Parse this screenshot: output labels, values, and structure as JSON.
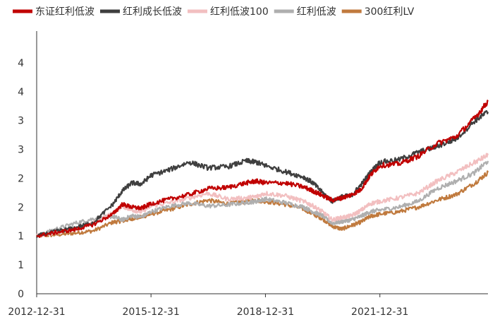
{
  "chart_data": {
    "type": "line",
    "title": "",
    "xlabel": "",
    "ylabel": "",
    "x_ticks": [
      "2012-12-31",
      "2015-12-31",
      "2018-12-31",
      "2021-12-31"
    ],
    "x_range": [
      "2012-12-31",
      "2024-10-31"
    ],
    "y_ticks": [
      "0",
      "1",
      "1",
      "2",
      "2",
      "3",
      "3",
      "4",
      "4"
    ],
    "ylim": [
      0,
      4.5
    ],
    "grid": false,
    "legend_position": "top",
    "series": [
      {
        "name": "东证红利低波",
        "color": "#C00000",
        "points": [
          [
            "2012-12-31",
            1.0
          ],
          [
            "2013-06-30",
            1.06
          ],
          [
            "2013-12-31",
            1.11
          ],
          [
            "2014-06-30",
            1.2
          ],
          [
            "2014-12-31",
            1.38
          ],
          [
            "2015-03-31",
            1.55
          ],
          [
            "2015-06-30",
            1.5
          ],
          [
            "2015-09-30",
            1.48
          ],
          [
            "2015-12-31",
            1.56
          ],
          [
            "2016-06-30",
            1.64
          ],
          [
            "2016-12-31",
            1.72
          ],
          [
            "2017-06-30",
            1.82
          ],
          [
            "2017-12-31",
            1.84
          ],
          [
            "2018-06-30",
            1.92
          ],
          [
            "2018-09-30",
            1.95
          ],
          [
            "2018-12-31",
            1.92
          ],
          [
            "2019-06-30",
            1.92
          ],
          [
            "2019-12-31",
            1.85
          ],
          [
            "2020-03-31",
            1.78
          ],
          [
            "2020-06-30",
            1.7
          ],
          [
            "2020-09-30",
            1.62
          ],
          [
            "2020-12-31",
            1.66
          ],
          [
            "2021-03-31",
            1.71
          ],
          [
            "2021-06-30",
            1.8
          ],
          [
            "2021-09-30",
            2.05
          ],
          [
            "2021-12-31",
            2.22
          ],
          [
            "2022-06-30",
            2.25
          ],
          [
            "2022-12-31",
            2.38
          ],
          [
            "2023-06-30",
            2.6
          ],
          [
            "2023-12-31",
            2.72
          ],
          [
            "2024-06-30",
            3.05
          ],
          [
            "2024-10-31",
            3.33
          ]
        ]
      },
      {
        "name": "红利成长低波",
        "color": "#3F3F3F",
        "points": [
          [
            "2012-12-31",
            1.0
          ],
          [
            "2013-06-30",
            1.08
          ],
          [
            "2013-12-31",
            1.14
          ],
          [
            "2014-06-30",
            1.24
          ],
          [
            "2014-12-31",
            1.55
          ],
          [
            "2015-03-31",
            1.78
          ],
          [
            "2015-06-30",
            1.92
          ],
          [
            "2015-09-30",
            1.9
          ],
          [
            "2015-12-31",
            2.05
          ],
          [
            "2016-06-30",
            2.15
          ],
          [
            "2016-12-31",
            2.28
          ],
          [
            "2017-06-30",
            2.18
          ],
          [
            "2017-12-31",
            2.2
          ],
          [
            "2018-06-30",
            2.3
          ],
          [
            "2018-09-30",
            2.28
          ],
          [
            "2018-12-31",
            2.22
          ],
          [
            "2019-06-30",
            2.12
          ],
          [
            "2019-12-31",
            2.02
          ],
          [
            "2020-03-31",
            1.92
          ],
          [
            "2020-06-30",
            1.75
          ],
          [
            "2020-09-30",
            1.6
          ],
          [
            "2020-12-31",
            1.68
          ],
          [
            "2021-03-31",
            1.7
          ],
          [
            "2021-06-30",
            1.88
          ],
          [
            "2021-09-30",
            2.1
          ],
          [
            "2021-12-31",
            2.28
          ],
          [
            "2022-06-30",
            2.32
          ],
          [
            "2022-12-31",
            2.45
          ],
          [
            "2023-06-30",
            2.55
          ],
          [
            "2023-12-31",
            2.68
          ],
          [
            "2024-06-30",
            3.0
          ],
          [
            "2024-10-31",
            3.15
          ]
        ]
      },
      {
        "name": "红利低波100",
        "color": "#F2BFC0",
        "points": [
          [
            "2012-12-31",
            1.0
          ],
          [
            "2013-06-30",
            1.06
          ],
          [
            "2013-12-31",
            1.12
          ],
          [
            "2014-06-30",
            1.22
          ],
          [
            "2014-12-31",
            1.4
          ],
          [
            "2015-03-31",
            1.52
          ],
          [
            "2015-06-30",
            1.45
          ],
          [
            "2015-09-30",
            1.42
          ],
          [
            "2015-12-31",
            1.52
          ],
          [
            "2016-06-30",
            1.58
          ],
          [
            "2016-12-31",
            1.66
          ],
          [
            "2017-06-30",
            1.74
          ],
          [
            "2017-12-31",
            1.64
          ],
          [
            "2018-06-30",
            1.66
          ],
          [
            "2018-09-30",
            1.68
          ],
          [
            "2018-12-31",
            1.74
          ],
          [
            "2019-06-30",
            1.7
          ],
          [
            "2019-12-31",
            1.6
          ],
          [
            "2020-03-31",
            1.52
          ],
          [
            "2020-06-30",
            1.42
          ],
          [
            "2020-09-30",
            1.28
          ],
          [
            "2020-12-31",
            1.32
          ],
          [
            "2021-03-31",
            1.35
          ],
          [
            "2021-06-30",
            1.44
          ],
          [
            "2021-09-30",
            1.56
          ],
          [
            "2021-12-31",
            1.6
          ],
          [
            "2022-06-30",
            1.66
          ],
          [
            "2022-12-31",
            1.74
          ],
          [
            "2023-06-30",
            1.95
          ],
          [
            "2023-12-31",
            2.1
          ],
          [
            "2024-06-30",
            2.28
          ],
          [
            "2024-10-31",
            2.4
          ]
        ]
      },
      {
        "name": "红利低波",
        "color": "#AFAFAF",
        "points": [
          [
            "2012-12-31",
            1.0
          ],
          [
            "2013-06-30",
            1.12
          ],
          [
            "2013-12-31",
            1.22
          ],
          [
            "2014-06-30",
            1.3
          ],
          [
            "2014-12-31",
            1.34
          ],
          [
            "2015-03-31",
            1.28
          ],
          [
            "2015-06-30",
            1.35
          ],
          [
            "2015-09-30",
            1.33
          ],
          [
            "2015-12-31",
            1.42
          ],
          [
            "2016-06-30",
            1.52
          ],
          [
            "2016-12-31",
            1.57
          ],
          [
            "2017-06-30",
            1.52
          ],
          [
            "2017-12-31",
            1.54
          ],
          [
            "2018-06-30",
            1.58
          ],
          [
            "2018-09-30",
            1.6
          ],
          [
            "2018-12-31",
            1.64
          ],
          [
            "2019-06-30",
            1.58
          ],
          [
            "2019-12-31",
            1.5
          ],
          [
            "2020-03-31",
            1.42
          ],
          [
            "2020-06-30",
            1.35
          ],
          [
            "2020-09-30",
            1.22
          ],
          [
            "2020-12-31",
            1.25
          ],
          [
            "2021-03-31",
            1.28
          ],
          [
            "2021-06-30",
            1.34
          ],
          [
            "2021-09-30",
            1.42
          ],
          [
            "2021-12-31",
            1.45
          ],
          [
            "2022-06-30",
            1.5
          ],
          [
            "2022-12-31",
            1.6
          ],
          [
            "2023-06-30",
            1.82
          ],
          [
            "2023-12-31",
            1.95
          ],
          [
            "2024-06-30",
            2.1
          ],
          [
            "2024-10-31",
            2.3
          ]
        ]
      },
      {
        "name": "300红利LV",
        "color": "#C07A3E",
        "points": [
          [
            "2012-12-31",
            1.0
          ],
          [
            "2013-06-30",
            1.02
          ],
          [
            "2013-12-31",
            1.05
          ],
          [
            "2014-06-30",
            1.09
          ],
          [
            "2014-12-31",
            1.24
          ],
          [
            "2015-03-31",
            1.26
          ],
          [
            "2015-06-30",
            1.3
          ],
          [
            "2015-09-30",
            1.33
          ],
          [
            "2015-12-31",
            1.38
          ],
          [
            "2016-06-30",
            1.46
          ],
          [
            "2016-12-31",
            1.55
          ],
          [
            "2017-06-30",
            1.62
          ],
          [
            "2017-12-31",
            1.56
          ],
          [
            "2018-06-30",
            1.6
          ],
          [
            "2018-09-30",
            1.62
          ],
          [
            "2018-12-31",
            1.6
          ],
          [
            "2019-06-30",
            1.55
          ],
          [
            "2019-12-31",
            1.47
          ],
          [
            "2020-03-31",
            1.38
          ],
          [
            "2020-06-30",
            1.3
          ],
          [
            "2020-09-30",
            1.17
          ],
          [
            "2020-12-31",
            1.12
          ],
          [
            "2021-03-31",
            1.18
          ],
          [
            "2021-06-30",
            1.24
          ],
          [
            "2021-09-30",
            1.34
          ],
          [
            "2021-12-31",
            1.38
          ],
          [
            "2022-06-30",
            1.42
          ],
          [
            "2022-12-31",
            1.5
          ],
          [
            "2023-06-30",
            1.62
          ],
          [
            "2023-12-31",
            1.72
          ],
          [
            "2024-06-30",
            1.92
          ],
          [
            "2024-10-31",
            2.1
          ]
        ]
      }
    ]
  }
}
